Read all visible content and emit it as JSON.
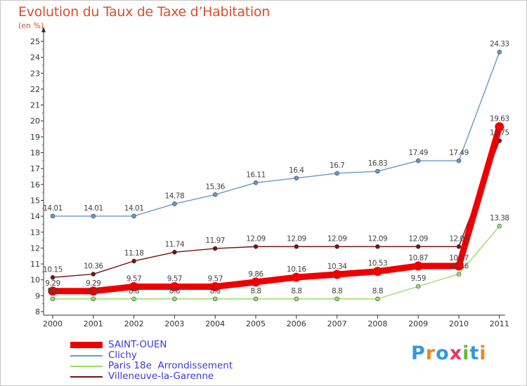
{
  "chart_data": {
    "type": "line",
    "title": "Evolution du Taux de Taxe d’Habitation",
    "unit_label": "(en %)",
    "categories": [
      "2000",
      "2001",
      "2002",
      "2003",
      "2004",
      "2005",
      "2006",
      "2007",
      "2008",
      "2009",
      "2010",
      "2011"
    ],
    "ylim": [
      8,
      25
    ],
    "yticks": [
      8,
      9,
      10,
      11,
      12,
      13,
      14,
      15,
      16,
      17,
      18,
      19,
      20,
      21,
      22,
      23,
      24,
      25
    ],
    "grid": false,
    "legend_position": "bottom-left",
    "series": [
      {
        "name": "SAINT-OUEN",
        "color": "#ee0000",
        "values": [
          9.29,
          9.29,
          9.57,
          9.57,
          9.57,
          9.86,
          10.16,
          10.34,
          10.53,
          10.87,
          10.87,
          19.63
        ],
        "labels": [
          "9.29",
          "9.29",
          "9.57",
          "9.57",
          "9.57",
          "9.86",
          "10.16",
          "10.34",
          "10.53",
          "10.87",
          "10.87",
          "19.63"
        ]
      },
      {
        "name": "Clichy",
        "color": "#6699cc",
        "values": [
          14.01,
          14.01,
          14.01,
          14.78,
          15.36,
          16.11,
          16.4,
          16.7,
          16.83,
          17.49,
          17.49,
          24.33
        ],
        "labels": [
          "14.01",
          "14.01",
          "14.01",
          "14.78",
          "15.36",
          "16.11",
          "16.4",
          "16.7",
          "16.83",
          "17.49",
          "17.49",
          "24.33"
        ]
      },
      {
        "name": "Paris 18e  Arrondissement",
        "color": "#99dd66",
        "values": [
          8.8,
          8.8,
          8.8,
          8.8,
          8.8,
          8.8,
          8.8,
          8.8,
          8.8,
          9.59,
          10.36,
          13.38
        ],
        "labels": [
          "8.8",
          "8.8",
          "8.8",
          "8.8",
          "8.8",
          "8.8",
          "8.8",
          "8.8",
          "8.8",
          "9.59",
          "10.36",
          "13.38"
        ]
      },
      {
        "name": "Villeneuve-la-Garenne",
        "color": "#771111",
        "values": [
          10.15,
          10.36,
          11.18,
          11.74,
          11.97,
          12.09,
          12.09,
          12.09,
          12.09,
          12.09,
          12.09,
          18.75
        ],
        "labels": [
          "10.15",
          "10.36",
          "11.18",
          "11.74",
          "11.97",
          "12.09",
          "12.09",
          "12.09",
          "12.09",
          "12.09",
          "12.09",
          "18.75"
        ]
      }
    ]
  },
  "logo": {
    "text": "Proxiti",
    "colors": [
      "#3399dd",
      "#ee8822",
      "#3399dd",
      "#ee3366",
      "#66bb33",
      "#3399dd",
      "#ee8822"
    ]
  }
}
